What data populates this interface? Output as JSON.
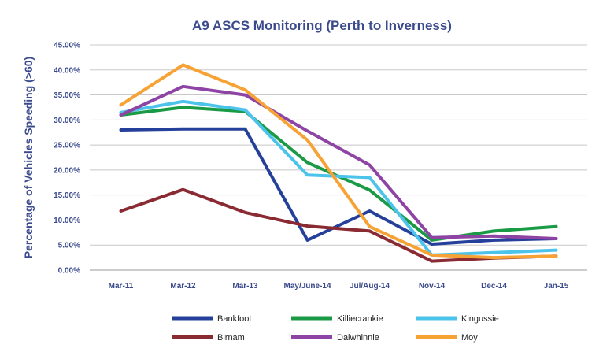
{
  "chart_data": {
    "type": "line",
    "title": "A9 ASCS Monitoring (Perth to Inverness)",
    "xlabel": "",
    "ylabel": "Percentage of Vehicles Speeding (>60)",
    "categories": [
      "Mar-11",
      "Mar-12",
      "Mar-13",
      "May/June-14",
      "Jul/Aug-14",
      "Nov-14",
      "Dec-14",
      "Jan-15"
    ],
    "ylim": [
      0,
      45
    ],
    "yticks": [
      0,
      5,
      10,
      15,
      20,
      25,
      30,
      35,
      40,
      45
    ],
    "ytick_labels": [
      "0.00%",
      "5.00%",
      "10.00%",
      "15.00%",
      "20.00%",
      "25.00%",
      "30.00%",
      "35.00%",
      "40.00%",
      "45.00%"
    ],
    "grid": true,
    "legend_position": "bottom",
    "series": [
      {
        "name": "Bankfoot",
        "color": "#24409a",
        "values": [
          28.0,
          28.2,
          28.2,
          6.0,
          11.8,
          5.2,
          6.0,
          6.3
        ]
      },
      {
        "name": "Killiecrankie",
        "color": "#1a9a45",
        "values": [
          31.0,
          32.5,
          31.7,
          21.5,
          16.0,
          6.0,
          7.8,
          8.7
        ]
      },
      {
        "name": "Kingussie",
        "color": "#4cc3eb",
        "values": [
          31.5,
          33.7,
          32.0,
          19.0,
          18.5,
          3.0,
          3.5,
          4.0
        ]
      },
      {
        "name": "Birnam",
        "color": "#8a2a33",
        "values": [
          11.8,
          16.1,
          11.5,
          8.8,
          7.8,
          1.8,
          2.4,
          2.8
        ]
      },
      {
        "name": "Dalwhinnie",
        "color": "#8e44a4",
        "values": [
          31.0,
          36.7,
          35.0,
          27.8,
          21.0,
          6.5,
          6.8,
          6.3
        ]
      },
      {
        "name": "Moy",
        "color": "#f7a235",
        "values": [
          33.0,
          41.0,
          36.0,
          26.0,
          8.7,
          3.0,
          2.5,
          2.8
        ]
      }
    ]
  }
}
